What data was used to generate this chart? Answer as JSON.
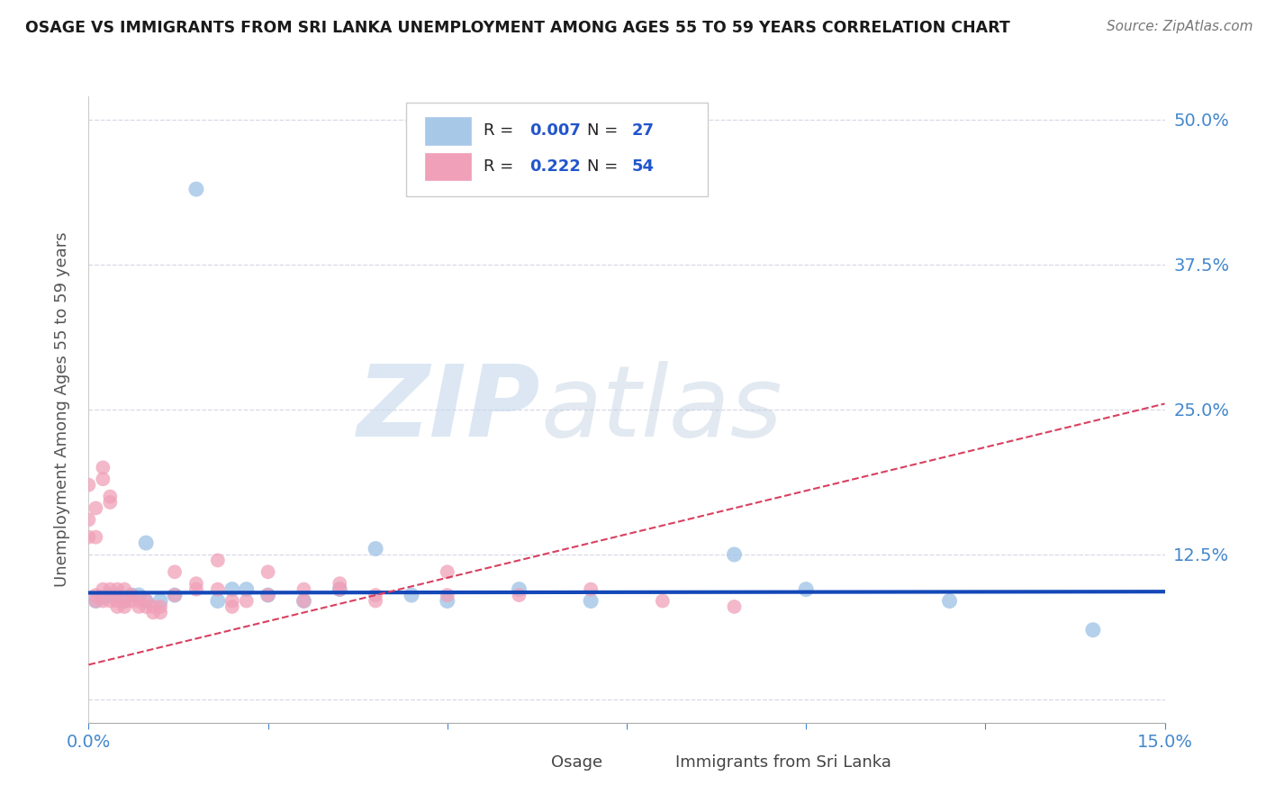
{
  "title": "OSAGE VS IMMIGRANTS FROM SRI LANKA UNEMPLOYMENT AMONG AGES 55 TO 59 YEARS CORRELATION CHART",
  "source": "Source: ZipAtlas.com",
  "ylabel": "Unemployment Among Ages 55 to 59 years",
  "xlim": [
    0.0,
    0.15
  ],
  "ylim": [
    -0.02,
    0.52
  ],
  "xtick_vals": [
    0.0,
    0.025,
    0.05,
    0.075,
    0.1,
    0.125,
    0.15
  ],
  "xtick_labels_show": [
    "0.0%",
    "",
    "",
    "",
    "",
    "",
    "15.0%"
  ],
  "ytick_vals": [
    0.0,
    0.125,
    0.25,
    0.375,
    0.5
  ],
  "ytick_labels": [
    "",
    "12.5%",
    "25.0%",
    "37.5%",
    "50.0%"
  ],
  "osage_color": "#a8c8e8",
  "sri_lanka_color": "#f0a0b8",
  "trend_osage_color": "#1448b8",
  "trend_sri_color": "#d84060",
  "tick_color": "#4488cc",
  "label_color": "#4488cc",
  "grid_color": "#d8d8e8",
  "background_color": "#ffffff",
  "osage_x": [
    0.015,
    0.001,
    0.002,
    0.003,
    0.004,
    0.005,
    0.006,
    0.007,
    0.008,
    0.01,
    0.012,
    0.018,
    0.02,
    0.025,
    0.03,
    0.035,
    0.04,
    0.05,
    0.06,
    0.07,
    0.09,
    0.1,
    0.12,
    0.14,
    0.022,
    0.008,
    0.045
  ],
  "osage_y": [
    0.44,
    0.085,
    0.088,
    0.09,
    0.09,
    0.085,
    0.09,
    0.09,
    0.135,
    0.085,
    0.09,
    0.085,
    0.095,
    0.09,
    0.085,
    0.095,
    0.13,
    0.085,
    0.095,
    0.085,
    0.125,
    0.095,
    0.085,
    0.06,
    0.095,
    0.085,
    0.09
  ],
  "sri_x": [
    0.0,
    0.0,
    0.0,
    0.001,
    0.001,
    0.001,
    0.001,
    0.002,
    0.002,
    0.002,
    0.002,
    0.003,
    0.003,
    0.003,
    0.003,
    0.004,
    0.004,
    0.004,
    0.005,
    0.005,
    0.005,
    0.006,
    0.006,
    0.007,
    0.007,
    0.008,
    0.008,
    0.009,
    0.009,
    0.01,
    0.01,
    0.012,
    0.012,
    0.015,
    0.015,
    0.018,
    0.018,
    0.02,
    0.02,
    0.022,
    0.025,
    0.025,
    0.03,
    0.03,
    0.035,
    0.035,
    0.04,
    0.04,
    0.05,
    0.05,
    0.06,
    0.07,
    0.08,
    0.09
  ],
  "sri_y": [
    0.185,
    0.155,
    0.14,
    0.165,
    0.14,
    0.09,
    0.085,
    0.19,
    0.2,
    0.095,
    0.085,
    0.17,
    0.175,
    0.095,
    0.085,
    0.085,
    0.08,
    0.095,
    0.085,
    0.08,
    0.095,
    0.09,
    0.085,
    0.085,
    0.08,
    0.08,
    0.085,
    0.075,
    0.08,
    0.08,
    0.075,
    0.11,
    0.09,
    0.1,
    0.095,
    0.12,
    0.095,
    0.08,
    0.085,
    0.085,
    0.11,
    0.09,
    0.095,
    0.085,
    0.1,
    0.095,
    0.09,
    0.085,
    0.11,
    0.09,
    0.09,
    0.095,
    0.085,
    0.08
  ],
  "osage_trend_y0": 0.092,
  "osage_trend_y1": 0.093,
  "sri_trend_y0": 0.03,
  "sri_trend_y1": 0.255
}
